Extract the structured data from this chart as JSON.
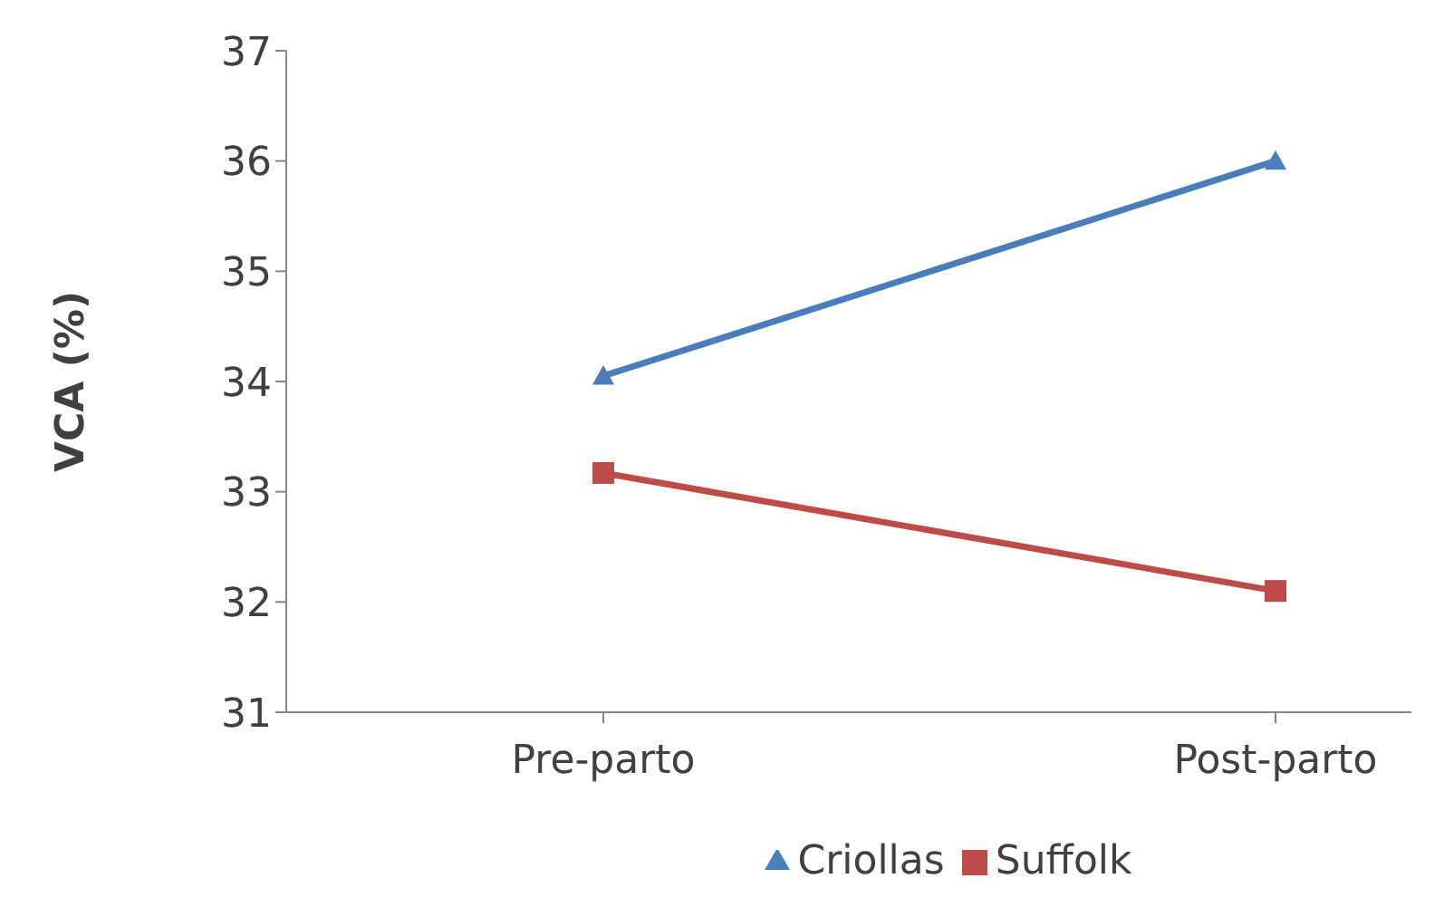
{
  "chart_data": {
    "type": "line",
    "ylabel": "VCA (%)",
    "categories": [
      "Pre-parto",
      "Post-parto"
    ],
    "series": [
      {
        "name": "Criollas",
        "color": "#4a7ebb",
        "values": [
          34.05,
          36.0
        ],
        "marker": "triangle"
      },
      {
        "name": "Suffolk",
        "color": "#be4b48",
        "values": [
          33.17,
          32.1
        ],
        "marker": "square"
      }
    ],
    "ylim": [
      31,
      37
    ],
    "yticks": [
      31,
      32,
      33,
      34,
      35,
      36,
      37
    ],
    "grid": false,
    "legend": "bottom"
  }
}
